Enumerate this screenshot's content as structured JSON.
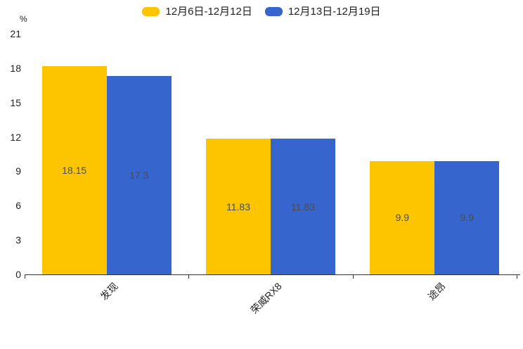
{
  "chart_data": {
    "type": "bar",
    "title": "",
    "unit_label": "%",
    "categories": [
      "发现",
      "荣威RX8",
      "途昂"
    ],
    "series": [
      {
        "name": "12月6日-12月12日",
        "color": "#FDC500",
        "values": [
          18.15,
          11.83,
          9.9
        ]
      },
      {
        "name": "12月13日-12月19日",
        "color": "#3565CD",
        "values": [
          17.3,
          11.83,
          9.9
        ]
      }
    ],
    "value_labels": [
      [
        "18.15",
        "11.83",
        "9.9"
      ],
      [
        "17.3",
        "11.83",
        "9.9"
      ]
    ],
    "ylim": [
      0,
      21
    ],
    "yticks": [
      0,
      3,
      6,
      9,
      12,
      15,
      18,
      21
    ],
    "grid": false,
    "legend_position": "top",
    "axis_color": "#333333",
    "text_color": "#1f1f1f",
    "value_label_color": "#4d4d4d"
  }
}
